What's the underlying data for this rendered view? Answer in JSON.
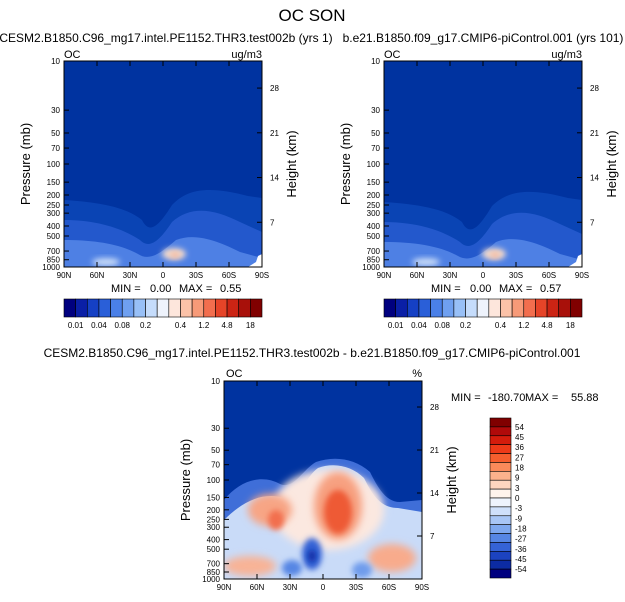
{
  "figure_title": "OC SON",
  "colors": {
    "field_base": "#0033a0",
    "frame": "#000000",
    "no_data": "#ffffff"
  },
  "chart_data": [
    {
      "type": "heatmap",
      "panel": "test",
      "title": "CESM2.B1850.C96_mg17.intel.PE1152.THR3.test002b (yrs 1)",
      "variable_label": "OC",
      "units_label": "ug/m3",
      "xlabel": "",
      "ylabel": "Pressure (mb)",
      "y2label": "Height (km)",
      "x_ticks": [
        "90N",
        "60N",
        "30N",
        "0",
        "30S",
        "60S",
        "90S"
      ],
      "y_ticks": [
        "10",
        "30",
        "50",
        "70",
        "100",
        "150",
        "200",
        "250",
        "300",
        "400",
        "500",
        "700",
        "850",
        "1000"
      ],
      "y2_ticks": [
        "28",
        "21",
        "14",
        "7"
      ],
      "stats": {
        "min_label": "MIN =",
        "min": "0.00",
        "max_label": "MAX =",
        "max": "0.55"
      },
      "colorbar": {
        "orientation": "horizontal",
        "labels": [
          "0.01",
          "0.04",
          "0.08",
          "0.2",
          "0.4",
          "1.2",
          "4.8",
          "18"
        ],
        "colors": [
          "#00007f",
          "#0a1fa6",
          "#1540c4",
          "#2a5fd8",
          "#4a80e8",
          "#6fa0f0",
          "#98c0f7",
          "#c5dcfb",
          "#eef3fc",
          "#fde6dc",
          "#fbc2a8",
          "#f79a78",
          "#f26e4e",
          "#e64428",
          "#cc2414",
          "#a8100a",
          "#800000"
        ]
      }
    },
    {
      "type": "heatmap",
      "panel": "control",
      "title": "b.e21.B1850.f09_g17.CMIP6-piControl.001 (yrs 101)",
      "variable_label": "OC",
      "units_label": "ug/m3",
      "xlabel": "",
      "ylabel": "Pressure (mb)",
      "y2label": "Height (km)",
      "x_ticks": [
        "90N",
        "60N",
        "30N",
        "0",
        "30S",
        "60S",
        "90S"
      ],
      "y_ticks": [
        "10",
        "30",
        "50",
        "70",
        "100",
        "150",
        "200",
        "250",
        "300",
        "400",
        "500",
        "700",
        "850",
        "1000"
      ],
      "y2_ticks": [
        "28",
        "21",
        "14",
        "7"
      ],
      "stats": {
        "min_label": "MIN =",
        "min": "0.00",
        "max_label": "MAX =",
        "max": "0.57"
      },
      "colorbar": {
        "orientation": "horizontal",
        "labels": [
          "0.01",
          "0.04",
          "0.08",
          "0.2",
          "0.4",
          "1.2",
          "4.8",
          "18"
        ],
        "colors": [
          "#00007f",
          "#0a1fa6",
          "#1540c4",
          "#2a5fd8",
          "#4a80e8",
          "#6fa0f0",
          "#98c0f7",
          "#c5dcfb",
          "#eef3fc",
          "#fde6dc",
          "#fbc2a8",
          "#f79a78",
          "#f26e4e",
          "#e64428",
          "#cc2414",
          "#a8100a",
          "#800000"
        ]
      }
    },
    {
      "type": "heatmap",
      "panel": "difference",
      "title": "CESM2.B1850.C96_mg17.intel.PE1152.THR3.test002b - b.e21.B1850.f09_g17.CMIP6-piControl.001",
      "variable_label": "OC",
      "units_label": "%",
      "xlabel": "",
      "ylabel": "Pressure (mb)",
      "y2label": "Height (km)",
      "x_ticks": [
        "90N",
        "60N",
        "30N",
        "0",
        "30S",
        "60S",
        "90S"
      ],
      "y_ticks": [
        "10",
        "30",
        "50",
        "70",
        "100",
        "150",
        "200",
        "250",
        "300",
        "400",
        "500",
        "700",
        "850",
        "1000"
      ],
      "y2_ticks": [
        "28",
        "21",
        "14",
        "7"
      ],
      "stats": {
        "min_label": "MIN =",
        "min": "-180.70",
        "max_label": "MAX =",
        "max": "55.88"
      },
      "colorbar": {
        "orientation": "vertical",
        "labels": [
          "54",
          "45",
          "36",
          "27",
          "18",
          "9",
          "3",
          "0",
          "-3",
          "-9",
          "-18",
          "-27",
          "-36",
          "-45",
          "-54"
        ],
        "colors": [
          "#800000",
          "#b00a0a",
          "#d41c0c",
          "#ee3a18",
          "#f65e2e",
          "#fa8a5a",
          "#fcb28c",
          "#fdd6c0",
          "#fff3ec",
          "#eef3fd",
          "#cfe0fb",
          "#a8c6f6",
          "#7ea8ef",
          "#5686e4",
          "#3563d6",
          "#1c43c0",
          "#0c2ba3",
          "#00007f"
        ]
      }
    }
  ]
}
